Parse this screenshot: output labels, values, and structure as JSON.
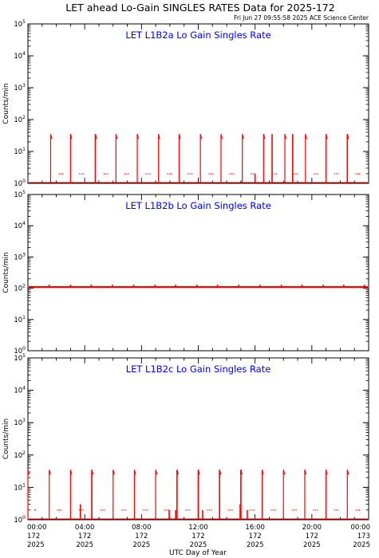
{
  "title": "LET ahead Lo-Gain SINGLES RATES Data for 2025-172",
  "stamp": "Fri Jun 27 09:55:58 2025 ACE Science Center",
  "colors": {
    "data": "#ff0000",
    "panel_title": "#0000ff",
    "axes": "#000000"
  },
  "chart_data": [
    {
      "type": "line",
      "title": "LET L1B2a Lo Gain Singles Rate",
      "ylabel": "Counts/min",
      "yscale": "log",
      "ylim": [
        1,
        100000
      ],
      "y_ticks": [
        "10^0",
        "10^1",
        "10^2",
        "10^3",
        "10^4",
        "10^5"
      ],
      "xlim": [
        0,
        24
      ],
      "baseline": 1,
      "plateau": 35,
      "cycles": [
        [
          1.6,
          2.1
        ],
        [
          3.0,
          3.55
        ],
        [
          4.75,
          5.3
        ],
        [
          6.2,
          6.75
        ],
        [
          7.7,
          8.25
        ],
        [
          9.2,
          9.75
        ],
        [
          10.65,
          11.2
        ],
        [
          12.15,
          12.7
        ],
        [
          13.6,
          14.15
        ],
        [
          15.1,
          15.65
        ],
        [
          16.6,
          17.15
        ],
        [
          18.1,
          18.6
        ],
        [
          19.55,
          20.05
        ],
        [
          21.0,
          21.5
        ],
        [
          22.5,
          23.0
        ]
      ],
      "spikes": [
        [
          4.75,
          35
        ],
        [
          16.0,
          2
        ],
        [
          17.2,
          35
        ],
        [
          18.65,
          35
        ],
        [
          22.5,
          35
        ]
      ]
    },
    {
      "type": "line",
      "title": "LET L1B2b Lo Gain Singles Rate",
      "ylabel": "Counts/min",
      "yscale": "log",
      "ylim": [
        1,
        100000
      ],
      "y_ticks": [
        "10^0",
        "10^1",
        "10^2",
        "10^3",
        "10^4",
        "10^5"
      ],
      "xlim": [
        0,
        24
      ],
      "level": 110,
      "peak": 130,
      "peaks": [
        1.5,
        3.0,
        4.45,
        5.95,
        7.45,
        8.95,
        10.4,
        11.9,
        13.35,
        14.85,
        16.35,
        17.85,
        19.3,
        20.8,
        22.25,
        23.7
      ]
    },
    {
      "type": "line",
      "title": "LET L1B2c Lo Gain Singles Rate",
      "ylabel": "Counts/min",
      "yscale": "log",
      "ylim": [
        1,
        100000
      ],
      "y_ticks": [
        "10^0",
        "10^1",
        "10^2",
        "10^3",
        "10^4",
        "10^5"
      ],
      "xlim": [
        0,
        24
      ],
      "baseline": 1,
      "plateau": 35,
      "cycles": [
        [
          0.0,
          0.05
        ],
        [
          1.5,
          1.95
        ],
        [
          3.0,
          3.55
        ],
        [
          4.5,
          5.05
        ],
        [
          6.0,
          6.55
        ],
        [
          7.5,
          8.05
        ],
        [
          9.0,
          9.55
        ],
        [
          10.5,
          11.05
        ],
        [
          12.0,
          12.6
        ],
        [
          13.5,
          14.05
        ],
        [
          15.0,
          15.6
        ],
        [
          16.5,
          17.1
        ],
        [
          18.0,
          18.55
        ],
        [
          19.5,
          20.05
        ],
        [
          21.0,
          21.5
        ],
        [
          22.5,
          23.0
        ]
      ],
      "spikes": [
        [
          3.7,
          3
        ],
        [
          4.5,
          35
        ],
        [
          9.95,
          2
        ],
        [
          10.4,
          2
        ],
        [
          10.5,
          35
        ],
        [
          12.0,
          35
        ],
        [
          12.3,
          2
        ],
        [
          13.5,
          35
        ],
        [
          14.95,
          3
        ],
        [
          15.0,
          35
        ],
        [
          15.45,
          2
        ]
      ]
    }
  ],
  "x_ticks": [
    {
      "time": "00:00",
      "day": "172",
      "year": "2025"
    },
    {
      "time": "04:00",
      "day": "172",
      "year": "2025"
    },
    {
      "time": "08:00",
      "day": "172",
      "year": "2025"
    },
    {
      "time": "12:00",
      "day": "172",
      "year": "2025"
    },
    {
      "time": "16:00",
      "day": "172",
      "year": "2025"
    },
    {
      "time": "20:00",
      "day": "172",
      "year": "2025"
    },
    {
      "time": "00:00",
      "day": "173",
      "year": "2025"
    }
  ],
  "xlabel": "UTC Day of Year"
}
